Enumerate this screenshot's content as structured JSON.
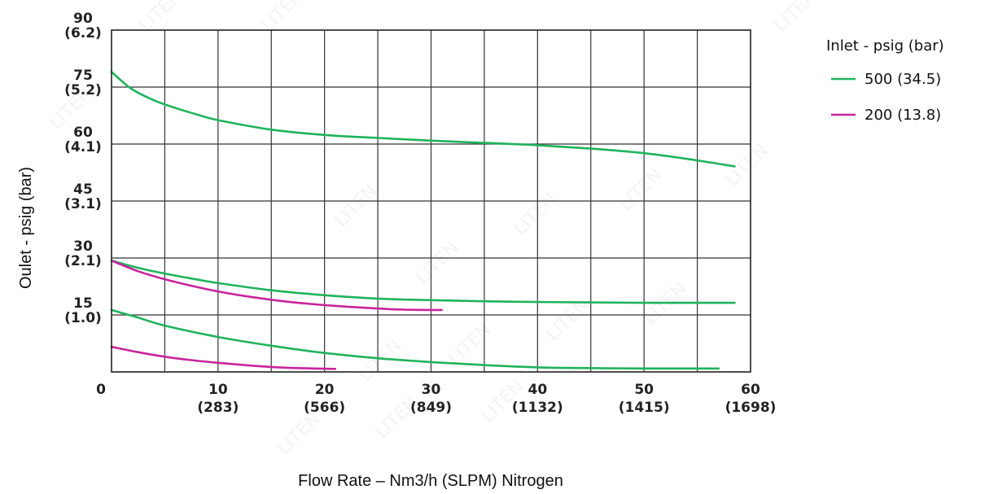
{
  "chart_data": {
    "type": "line",
    "title": "",
    "xlabel": "Flow Rate  –  Nm3/h (SLPM) Nitrogen",
    "ylabel": "Oulet - psig (bar)",
    "xlim": [
      0,
      60
    ],
    "ylim": [
      0,
      90
    ],
    "grid": true,
    "x_ticks": [
      {
        "value": 0,
        "label": "0",
        "sub": ""
      },
      {
        "value": 10,
        "label": "10",
        "sub": "(283)"
      },
      {
        "value": 20,
        "label": "20",
        "sub": "(566)"
      },
      {
        "value": 30,
        "label": "30",
        "sub": "(849)"
      },
      {
        "value": 40,
        "label": "40",
        "sub": "(1132)"
      },
      {
        "value": 50,
        "label": "50",
        "sub": "(1415)"
      },
      {
        "value": 60,
        "label": "60",
        "sub": "(1698)"
      }
    ],
    "y_ticks": [
      {
        "value": 90,
        "label": "90",
        "sub": "(6.2)"
      },
      {
        "value": 75,
        "label": "75",
        "sub": "(5.2)"
      },
      {
        "value": 60,
        "label": "60",
        "sub": "(4.1)"
      },
      {
        "value": 45,
        "label": "45",
        "sub": "(3.1)"
      },
      {
        "value": 30,
        "label": "30",
        "sub": "(2.1)"
      },
      {
        "value": 15,
        "label": "15",
        "sub": "(1.0)"
      }
    ],
    "legend": {
      "title": "Inlet - psig (bar)",
      "position": "right",
      "entries": [
        {
          "label": "500 (34.5)",
          "color": "#1fb35c"
        },
        {
          "label": "200 (13.8)",
          "color": "#c8259b"
        }
      ]
    },
    "series": [
      {
        "name": "500 (34.5)",
        "color": "#1fb35c",
        "x": [
          0,
          1,
          2,
          4,
          6,
          8,
          10,
          15,
          20,
          25,
          30,
          35,
          40,
          45,
          50,
          55,
          58.5
        ],
        "y": [
          79,
          76.5,
          74.3,
          71.5,
          69.5,
          67.8,
          66.3,
          63.8,
          62.4,
          61.6,
          60.9,
          60.3,
          59.7,
          58.8,
          57.6,
          55.7,
          54.1
        ]
      },
      {
        "name": "500 (34.5)",
        "color": "#1fb35c",
        "x": [
          0,
          2.5,
          5,
          7.5,
          10,
          15,
          20,
          25,
          30,
          35,
          40,
          45,
          50,
          55,
          58.5
        ],
        "y": [
          29.3,
          27.4,
          25.9,
          24.6,
          23.4,
          21.5,
          20.2,
          19.3,
          18.9,
          18.6,
          18.4,
          18.3,
          18.2,
          18.2,
          18.2
        ]
      },
      {
        "name": "500 (34.5)",
        "color": "#1fb35c",
        "x": [
          0,
          2.5,
          5,
          10,
          15,
          20,
          25,
          30,
          35,
          40,
          45,
          50,
          57
        ],
        "y": [
          16.3,
          14.3,
          12.2,
          9.2,
          6.9,
          5.0,
          3.6,
          2.6,
          1.8,
          1.2,
          1.0,
          0.9,
          0.9
        ]
      },
      {
        "name": "200 (13.8)",
        "color": "#c8259b",
        "x": [
          0,
          2.5,
          5,
          7.5,
          10,
          12.5,
          15,
          17.5,
          20,
          22.5,
          25,
          27.5,
          31
        ],
        "y": [
          29.3,
          26.5,
          24.4,
          22.7,
          21.2,
          20.0,
          19.0,
          18.2,
          17.6,
          17.1,
          16.7,
          16.4,
          16.3
        ]
      },
      {
        "name": "200 (13.8)",
        "color": "#c8259b",
        "x": [
          0,
          2.5,
          5,
          7.5,
          10,
          12.5,
          15,
          17.5,
          21
        ],
        "y": [
          6.6,
          5.2,
          4.0,
          3.1,
          2.4,
          1.8,
          1.3,
          1.0,
          0.8
        ]
      }
    ]
  },
  "watermark": "LITEN"
}
